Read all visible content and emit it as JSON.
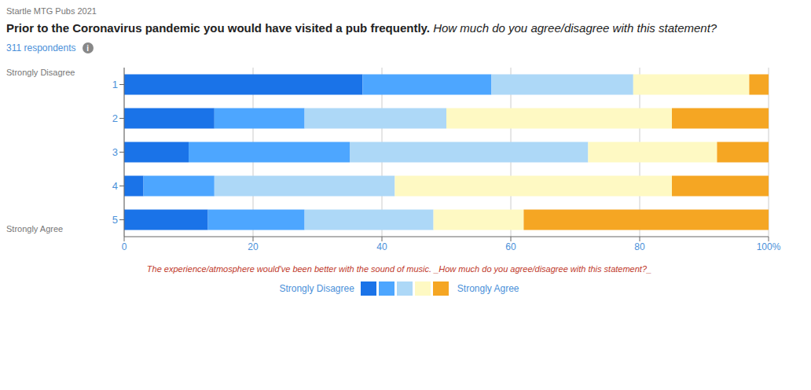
{
  "chart_data": {
    "type": "bar",
    "orientation": "horizontal",
    "stacked": true,
    "title": "Prior to the Coronavirus pandemic you would have visited a pub frequently.",
    "subtitle": "How much do you agree/disagree with this statement?",
    "annotations": [
      "Startle MTG Pubs 2021",
      "311 respondents",
      "i",
      "Strongly Disagree",
      "Strongly Agree",
      "The experience/atmosphere would've been better with the sound of music. _How much do you agree/disagree with this statement?_",
      "Strongly Disagree",
      "Strongly Agree"
    ],
    "categories": [
      "1",
      "2",
      "3",
      "4",
      "5"
    ],
    "series": [
      {
        "color": "#1a73e8",
        "values": [
          37,
          14,
          10,
          3,
          13
        ]
      },
      {
        "color": "#4da6ff",
        "values": [
          20,
          14,
          25,
          11,
          15
        ]
      },
      {
        "color": "#add8f7",
        "values": [
          22,
          22,
          37,
          28,
          20
        ]
      },
      {
        "color": "#fef9c3",
        "values": [
          18,
          35,
          20,
          43,
          14
        ]
      },
      {
        "color": "#f5a623",
        "values": [
          3,
          15,
          8,
          15,
          38
        ]
      }
    ],
    "xlim": [
      0,
      100
    ],
    "xticks": [
      0,
      20,
      40,
      60,
      80,
      {
        "value": 100,
        "label": "100%"
      }
    ],
    "grid": true,
    "legend": "bottom"
  }
}
